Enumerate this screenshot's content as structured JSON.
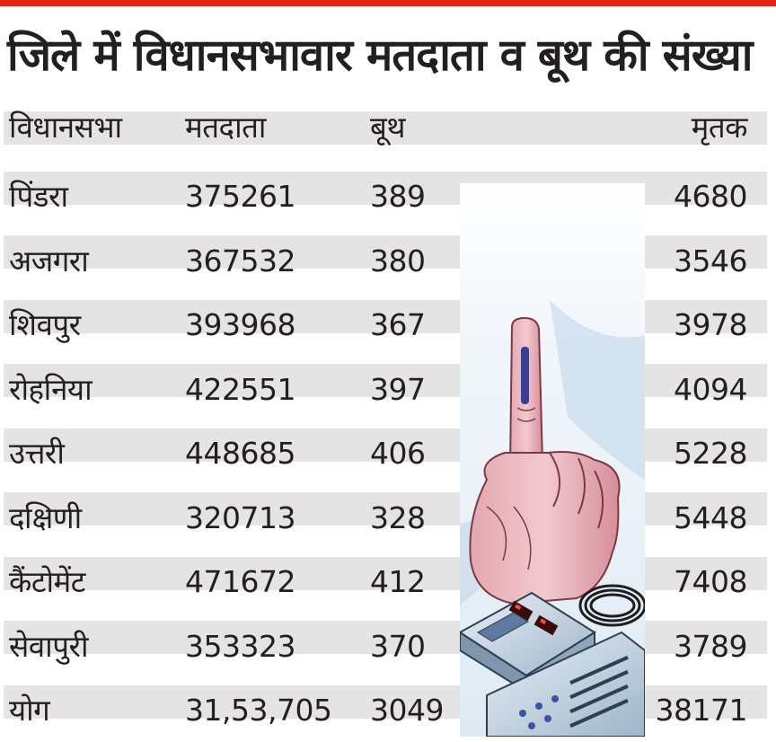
{
  "title": "जिले में विधानसभावार मतदाता व बूथ की संख्या",
  "headers": {
    "constituency": "विधानसभा",
    "voters": "मतदाता",
    "booths": "बूथ",
    "deceased": "मृतक"
  },
  "rows": [
    {
      "constituency": "पिंडरा",
      "voters": "375261",
      "booths": "389",
      "deceased": "4680"
    },
    {
      "constituency": "अजगरा",
      "voters": "367532",
      "booths": "380",
      "deceased": "3546"
    },
    {
      "constituency": "शिवपुर",
      "voters": "393968",
      "booths": "367",
      "deceased": "3978"
    },
    {
      "constituency": "रोहनिया",
      "voters": "422551",
      "booths": "397",
      "deceased": "4094"
    },
    {
      "constituency": "उत्तरी",
      "voters": "448685",
      "booths": "406",
      "deceased": "5228"
    },
    {
      "constituency": "दक्षिणी",
      "voters": "320713",
      "booths": "328",
      "deceased": "5448"
    },
    {
      "constituency": "कैंटोमेंट",
      "voters": "471672",
      "booths": "412",
      "deceased": "7408"
    },
    {
      "constituency": "सेवापुरी",
      "voters": "353323",
      "booths": "370",
      "deceased": "3789"
    },
    {
      "constituency": "योग",
      "voters": "31,53,705",
      "booths": "3049",
      "deceased": "38171"
    }
  ],
  "colors": {
    "accent_rule": "#e2231a",
    "row_band": "#e5e4e4",
    "text": "#231f20"
  },
  "illustration": "inked-finger-and-evm-illustration"
}
